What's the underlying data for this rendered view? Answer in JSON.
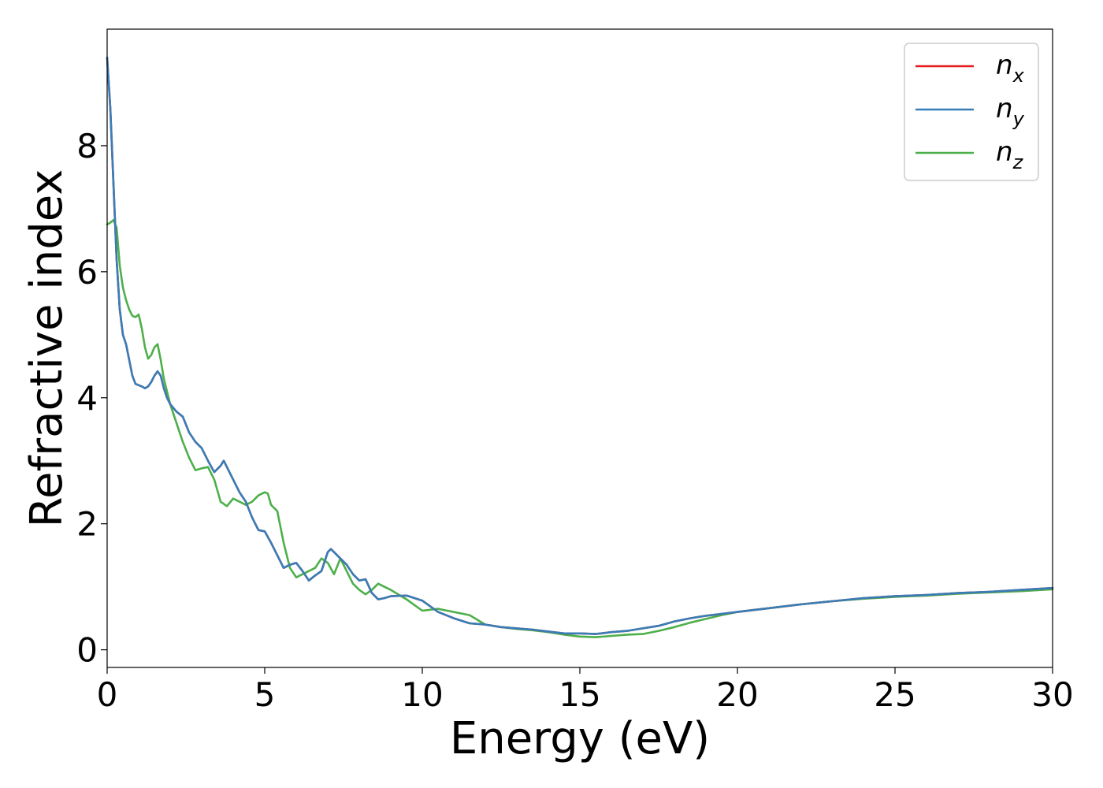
{
  "chart_data": {
    "type": "line",
    "xlabel": "Energy (eV)",
    "ylabel": "Refractive index",
    "xlim": [
      0,
      30
    ],
    "ylim": [
      -0.28,
      9.85
    ],
    "xticks": [
      0,
      5,
      10,
      15,
      20,
      25,
      30
    ],
    "yticks": [
      0,
      2,
      4,
      6,
      8
    ],
    "grid": false,
    "legend_position": "top-right",
    "series": [
      {
        "name": "n",
        "subscript": "x",
        "color": "#e41a1c",
        "x": [
          0,
          0.1,
          0.2,
          0.3,
          0.4,
          0.5,
          0.6,
          0.7,
          0.8,
          0.9,
          1.0,
          1.1,
          1.2,
          1.3,
          1.4,
          1.5,
          1.6,
          1.7,
          1.8,
          1.9,
          2.0,
          2.2,
          2.4,
          2.6,
          2.8,
          3.0,
          3.2,
          3.4,
          3.6,
          3.7,
          3.8,
          4.0,
          4.2,
          4.4,
          4.6,
          4.8,
          5.0,
          5.2,
          5.4,
          5.6,
          5.8,
          6.0,
          6.2,
          6.4,
          6.6,
          6.8,
          7.0,
          7.1,
          7.2,
          7.4,
          7.6,
          7.8,
          8.0,
          8.2,
          8.4,
          8.6,
          8.8,
          9.0,
          9.5,
          10.0,
          10.5,
          11.0,
          11.5,
          12.0,
          12.5,
          13.0,
          13.5,
          14.0,
          14.5,
          15.0,
          15.5,
          16.0,
          16.5,
          17.0,
          17.5,
          18.0,
          18.5,
          19.0,
          19.5,
          20.0,
          21.0,
          22.0,
          23.0,
          24.0,
          25.0,
          26.0,
          27.0,
          28.0,
          29.0,
          30.0
        ],
        "values": [
          9.4,
          8.6,
          7.4,
          6.2,
          5.4,
          5.0,
          4.85,
          4.6,
          4.35,
          4.22,
          4.2,
          4.18,
          4.15,
          4.18,
          4.25,
          4.35,
          4.42,
          4.35,
          4.15,
          4.0,
          3.9,
          3.78,
          3.7,
          3.45,
          3.3,
          3.2,
          3.0,
          2.82,
          2.92,
          3.0,
          2.9,
          2.7,
          2.5,
          2.35,
          2.1,
          1.9,
          1.88,
          1.7,
          1.5,
          1.3,
          1.35,
          1.38,
          1.25,
          1.1,
          1.18,
          1.25,
          1.55,
          1.6,
          1.55,
          1.45,
          1.35,
          1.2,
          1.1,
          1.12,
          0.9,
          0.8,
          0.82,
          0.85,
          0.86,
          0.78,
          0.6,
          0.5,
          0.42,
          0.4,
          0.36,
          0.34,
          0.32,
          0.29,
          0.26,
          0.26,
          0.25,
          0.28,
          0.3,
          0.34,
          0.38,
          0.45,
          0.5,
          0.54,
          0.57,
          0.6,
          0.66,
          0.72,
          0.77,
          0.82,
          0.85,
          0.87,
          0.9,
          0.92,
          0.95,
          0.98
        ]
      },
      {
        "name": "n",
        "subscript": "y",
        "color": "#377eb8",
        "x": [
          0,
          0.1,
          0.2,
          0.3,
          0.4,
          0.5,
          0.6,
          0.7,
          0.8,
          0.9,
          1.0,
          1.1,
          1.2,
          1.3,
          1.4,
          1.5,
          1.6,
          1.7,
          1.8,
          1.9,
          2.0,
          2.2,
          2.4,
          2.6,
          2.8,
          3.0,
          3.2,
          3.4,
          3.6,
          3.7,
          3.8,
          4.0,
          4.2,
          4.4,
          4.6,
          4.8,
          5.0,
          5.2,
          5.4,
          5.6,
          5.8,
          6.0,
          6.2,
          6.4,
          6.6,
          6.8,
          7.0,
          7.1,
          7.2,
          7.4,
          7.6,
          7.8,
          8.0,
          8.2,
          8.4,
          8.6,
          8.8,
          9.0,
          9.5,
          10.0,
          10.5,
          11.0,
          11.5,
          12.0,
          12.5,
          13.0,
          13.5,
          14.0,
          14.5,
          15.0,
          15.5,
          16.0,
          16.5,
          17.0,
          17.5,
          18.0,
          18.5,
          19.0,
          19.5,
          20.0,
          21.0,
          22.0,
          23.0,
          24.0,
          25.0,
          26.0,
          27.0,
          28.0,
          29.0,
          30.0
        ],
        "values": [
          9.4,
          8.6,
          7.4,
          6.2,
          5.4,
          5.0,
          4.85,
          4.6,
          4.35,
          4.22,
          4.2,
          4.18,
          4.15,
          4.18,
          4.25,
          4.35,
          4.42,
          4.35,
          4.15,
          4.0,
          3.9,
          3.78,
          3.7,
          3.45,
          3.3,
          3.2,
          3.0,
          2.82,
          2.92,
          3.0,
          2.9,
          2.7,
          2.5,
          2.35,
          2.1,
          1.9,
          1.88,
          1.7,
          1.5,
          1.3,
          1.35,
          1.38,
          1.25,
          1.1,
          1.18,
          1.25,
          1.55,
          1.6,
          1.55,
          1.45,
          1.35,
          1.2,
          1.1,
          1.12,
          0.9,
          0.8,
          0.82,
          0.85,
          0.86,
          0.78,
          0.6,
          0.5,
          0.42,
          0.4,
          0.36,
          0.34,
          0.32,
          0.29,
          0.26,
          0.26,
          0.25,
          0.28,
          0.3,
          0.34,
          0.38,
          0.45,
          0.5,
          0.54,
          0.57,
          0.6,
          0.66,
          0.72,
          0.77,
          0.82,
          0.85,
          0.87,
          0.9,
          0.92,
          0.95,
          0.98
        ]
      },
      {
        "name": "n",
        "subscript": "z",
        "color": "#4daf4a",
        "x": [
          0,
          0.1,
          0.2,
          0.3,
          0.4,
          0.5,
          0.6,
          0.7,
          0.8,
          0.9,
          1.0,
          1.1,
          1.2,
          1.3,
          1.4,
          1.5,
          1.6,
          1.7,
          1.8,
          2.0,
          2.2,
          2.4,
          2.6,
          2.8,
          3.0,
          3.2,
          3.4,
          3.6,
          3.8,
          4.0,
          4.2,
          4.4,
          4.6,
          4.8,
          5.0,
          5.1,
          5.2,
          5.4,
          5.6,
          5.8,
          6.0,
          6.2,
          6.4,
          6.6,
          6.8,
          7.0,
          7.2,
          7.4,
          7.6,
          7.8,
          8.0,
          8.2,
          8.4,
          8.6,
          8.8,
          9.0,
          9.5,
          10.0,
          10.5,
          11.0,
          11.5,
          12.0,
          12.5,
          13.0,
          13.5,
          14.0,
          14.5,
          15.0,
          15.5,
          16.0,
          16.5,
          17.0,
          17.5,
          18.0,
          18.5,
          19.0,
          19.5,
          20.0,
          21.0,
          22.0,
          23.0,
          24.0,
          25.0,
          26.0,
          27.0,
          28.0,
          29.0,
          30.0
        ],
        "values": [
          6.75,
          6.78,
          6.82,
          6.7,
          6.1,
          5.75,
          5.55,
          5.4,
          5.3,
          5.28,
          5.32,
          5.1,
          4.8,
          4.62,
          4.68,
          4.8,
          4.85,
          4.6,
          4.3,
          3.9,
          3.6,
          3.3,
          3.05,
          2.85,
          2.88,
          2.9,
          2.7,
          2.35,
          2.28,
          2.4,
          2.35,
          2.3,
          2.35,
          2.45,
          2.5,
          2.48,
          2.3,
          2.2,
          1.7,
          1.3,
          1.15,
          1.2,
          1.25,
          1.3,
          1.45,
          1.38,
          1.2,
          1.45,
          1.25,
          1.05,
          0.95,
          0.88,
          0.95,
          1.05,
          1.0,
          0.95,
          0.8,
          0.62,
          0.65,
          0.6,
          0.55,
          0.4,
          0.36,
          0.33,
          0.31,
          0.28,
          0.24,
          0.21,
          0.2,
          0.22,
          0.24,
          0.25,
          0.3,
          0.36,
          0.43,
          0.49,
          0.55,
          0.6,
          0.66,
          0.72,
          0.77,
          0.81,
          0.84,
          0.86,
          0.89,
          0.91,
          0.93,
          0.96
        ]
      }
    ]
  }
}
